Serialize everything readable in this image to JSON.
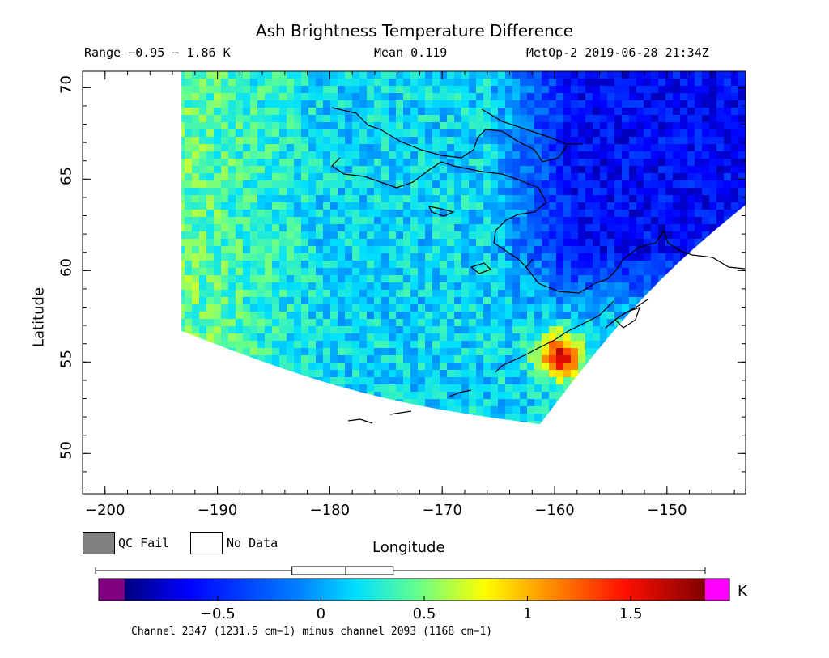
{
  "title": "Ash Brightness Temperature Difference",
  "header": {
    "range": "Range −0.95 − 1.86 K",
    "mean": "Mean 0.119",
    "satellite_time": "MetOp-2 2019-06-28 21:34Z"
  },
  "axes": {
    "xlabel": "Longitude",
    "ylabel": "Latitude",
    "xticks": [
      "−200",
      "−190",
      "−180",
      "−170",
      "−160",
      "−150"
    ],
    "yticks": [
      "70",
      "65",
      "60",
      "55",
      "50"
    ],
    "xlim": [
      -202,
      -143
    ],
    "ylim": [
      47.8,
      70.9
    ]
  },
  "legend": {
    "qc_fail": "QC Fail",
    "no_data": "No Data",
    "qc_fail_color": "#808080",
    "no_data_color": "#ffffff"
  },
  "colorbar": {
    "unit": "K",
    "tick_labels": [
      "−0.5",
      "0",
      "0.5",
      "1",
      "1.5"
    ],
    "tick_values": [
      -0.5,
      0,
      0.5,
      1,
      1.5
    ],
    "range": [
      -0.95,
      1.86
    ],
    "under_color": "#800080",
    "over_color": "#ff00ff",
    "box_summary": {
      "min": -0.95,
      "q1": -0.14,
      "median": 0.12,
      "q3": 0.35,
      "max": 1.86
    }
  },
  "footer": "Channel 2347 (1231.5 cm−1) minus channel 2093 (1168 cm−1)",
  "map": {
    "swath_corners_lonlat": [
      [
        -193.2,
        70.9
      ],
      [
        -193.2,
        56.7
      ],
      [
        -161.3,
        51.6
      ],
      [
        -143.0,
        63.6
      ],
      [
        -143.0,
        70.9
      ]
    ],
    "colors": {
      "low": "#1c3cf2",
      "background": "#3aa0f0",
      "green": "#6ee87e",
      "hot": "#e83010"
    }
  },
  "chart_data": {
    "type": "heatmap",
    "title": "Ash Brightness Temperature Difference",
    "xlabel": "Longitude",
    "ylabel": "Latitude",
    "xlim": [
      -202,
      -143
    ],
    "ylim": [
      47.8,
      70.9
    ],
    "value_range": [
      -0.95,
      1.86
    ],
    "mean": 0.119,
    "unit": "K",
    "regions": [
      {
        "lon": [
          -193,
          -182
        ],
        "lat": [
          57,
          71
        ],
        "typical_value": 0.45
      },
      {
        "lon": [
          -182,
          -165
        ],
        "lat": [
          54,
          70
        ],
        "typical_value": 0.15
      },
      {
        "lon": [
          -165,
          -145
        ],
        "lat": [
          58,
          71
        ],
        "typical_value": -0.55
      },
      {
        "lon": [
          -163,
          -157
        ],
        "lat": [
          54,
          57
        ],
        "typical_value": 1.5
      }
    ]
  }
}
